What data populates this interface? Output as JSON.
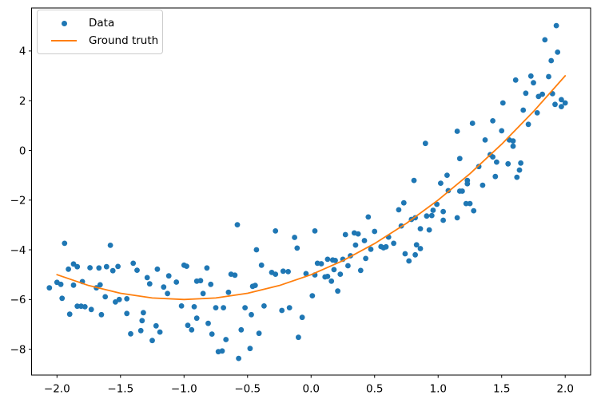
{
  "figure": {
    "background_color": "#ffffff",
    "axes_edge_color": "#000000"
  },
  "legend": {
    "items": [
      {
        "label": "Data",
        "marker": "dot",
        "color": "#1f77b4"
      },
      {
        "label": "Ground truth",
        "marker": "line",
        "color": "#ff7f0e"
      }
    ]
  },
  "chart_data": {
    "type": "scatter",
    "title": "",
    "xlabel": "",
    "ylabel": "",
    "grid": false,
    "legend_position": "upper left",
    "xlim": [
      -2.2,
      2.2
    ],
    "ylim": [
      -9.04,
      5.73
    ],
    "xticks": [
      -2.0,
      -1.5,
      -1.0,
      -0.5,
      0.0,
      0.5,
      1.0,
      1.5,
      2.0
    ],
    "xtick_labels": [
      "−2.0",
      "−1.5",
      "−1.0",
      "−0.5",
      "0.0",
      "0.5",
      "1.0",
      "1.5",
      "2.0"
    ],
    "yticks": [
      -8,
      -6,
      -4,
      -2,
      0,
      2,
      4
    ],
    "ytick_labels": [
      "−8",
      "−6",
      "−4",
      "−2",
      "0",
      "2",
      "4"
    ],
    "series": [
      {
        "name": "Data",
        "type": "scatter",
        "color": "#1f77b4",
        "marker_radius": 3.4,
        "points": [
          [
            -2.06,
            -5.53
          ],
          [
            -2.0,
            -5.31
          ],
          [
            -1.97,
            -5.39
          ],
          [
            -1.96,
            -5.95
          ],
          [
            -1.94,
            -3.74
          ],
          [
            -1.91,
            -4.78
          ],
          [
            -1.9,
            -6.59
          ],
          [
            -1.87,
            -4.57
          ],
          [
            -1.87,
            -5.42
          ],
          [
            -1.84,
            -4.68
          ],
          [
            -1.84,
            -6.27
          ],
          [
            -1.81,
            -6.27
          ],
          [
            -1.8,
            -5.28
          ],
          [
            -1.78,
            -6.29
          ],
          [
            -1.74,
            -4.72
          ],
          [
            -1.73,
            -6.4
          ],
          [
            -1.69,
            -5.53
          ],
          [
            -1.67,
            -4.73
          ],
          [
            -1.66,
            -5.41
          ],
          [
            -1.65,
            -6.61
          ],
          [
            -1.62,
            -5.89
          ],
          [
            -1.61,
            -4.68
          ],
          [
            -1.58,
            -3.82
          ],
          [
            -1.56,
            -4.84
          ],
          [
            -1.54,
            -6.1
          ],
          [
            -1.52,
            -4.67
          ],
          [
            -1.51,
            -6.0
          ],
          [
            -1.45,
            -5.97
          ],
          [
            -1.45,
            -6.56
          ],
          [
            -1.42,
            -7.38
          ],
          [
            -1.4,
            -4.54
          ],
          [
            -1.37,
            -4.82
          ],
          [
            -1.34,
            -7.25
          ],
          [
            -1.33,
            -6.85
          ],
          [
            -1.32,
            -6.53
          ],
          [
            -1.29,
            -5.12
          ],
          [
            -1.27,
            -5.37
          ],
          [
            -1.25,
            -7.65
          ],
          [
            -1.22,
            -7.06
          ],
          [
            -1.21,
            -4.78
          ],
          [
            -1.19,
            -7.31
          ],
          [
            -1.16,
            -5.5
          ],
          [
            -1.13,
            -5.76
          ],
          [
            -1.12,
            -5.05
          ],
          [
            -1.06,
            -5.3
          ],
          [
            -1.02,
            -6.26
          ],
          [
            -1.0,
            -4.62
          ],
          [
            -0.98,
            -4.66
          ],
          [
            -0.97,
            -7.04
          ],
          [
            -0.94,
            -7.22
          ],
          [
            -0.92,
            -6.29
          ],
          [
            -0.9,
            -5.26
          ],
          [
            -0.9,
            -6.75
          ],
          [
            -0.87,
            -5.24
          ],
          [
            -0.85,
            -5.76
          ],
          [
            -0.82,
            -4.73
          ],
          [
            -0.81,
            -6.96
          ],
          [
            -0.79,
            -5.39
          ],
          [
            -0.78,
            -7.39
          ],
          [
            -0.75,
            -6.33
          ],
          [
            -0.73,
            -8.1
          ],
          [
            -0.7,
            -8.07
          ],
          [
            -0.69,
            -6.33
          ],
          [
            -0.67,
            -7.61
          ],
          [
            -0.65,
            -5.71
          ],
          [
            -0.63,
            -4.98
          ],
          [
            -0.6,
            -5.02
          ],
          [
            -0.58,
            -2.99
          ],
          [
            -0.57,
            -8.37
          ],
          [
            -0.55,
            -7.22
          ],
          [
            -0.52,
            -6.33
          ],
          [
            -0.48,
            -7.97
          ],
          [
            -0.47,
            -6.61
          ],
          [
            -0.46,
            -5.47
          ],
          [
            -0.44,
            -5.43
          ],
          [
            -0.43,
            -4.0
          ],
          [
            -0.41,
            -7.36
          ],
          [
            -0.39,
            -4.62
          ],
          [
            -0.37,
            -6.26
          ],
          [
            -0.31,
            -4.91
          ],
          [
            -0.28,
            -3.24
          ],
          [
            -0.28,
            -4.98
          ],
          [
            -0.23,
            -6.44
          ],
          [
            -0.22,
            -4.86
          ],
          [
            -0.18,
            -4.88
          ],
          [
            -0.17,
            -6.33
          ],
          [
            -0.13,
            -3.5
          ],
          [
            -0.11,
            -3.93
          ],
          [
            -0.1,
            -7.52
          ],
          [
            -0.07,
            -6.72
          ],
          [
            -0.04,
            -4.96
          ],
          [
            0.01,
            -5.85
          ],
          [
            0.03,
            -3.24
          ],
          [
            0.03,
            -5.01
          ],
          [
            0.05,
            -4.54
          ],
          [
            0.08,
            -4.56
          ],
          [
            0.11,
            -5.09
          ],
          [
            0.13,
            -4.38
          ],
          [
            0.13,
            -5.07
          ],
          [
            0.16,
            -5.26
          ],
          [
            0.17,
            -4.41
          ],
          [
            0.18,
            -4.8
          ],
          [
            0.19,
            -4.43
          ],
          [
            0.21,
            -5.66
          ],
          [
            0.23,
            -4.98
          ],
          [
            0.25,
            -4.38
          ],
          [
            0.27,
            -3.39
          ],
          [
            0.29,
            -4.64
          ],
          [
            0.31,
            -4.24
          ],
          [
            0.34,
            -3.32
          ],
          [
            0.35,
            -3.81
          ],
          [
            0.37,
            -3.36
          ],
          [
            0.39,
            -4.83
          ],
          [
            0.42,
            -3.63
          ],
          [
            0.43,
            -4.35
          ],
          [
            0.45,
            -2.68
          ],
          [
            0.47,
            -3.98
          ],
          [
            0.5,
            -3.26
          ],
          [
            0.55,
            -3.87
          ],
          [
            0.57,
            -3.92
          ],
          [
            0.59,
            -3.88
          ],
          [
            0.61,
            -3.49
          ],
          [
            0.65,
            -3.74
          ],
          [
            0.69,
            -2.39
          ],
          [
            0.71,
            -3.04
          ],
          [
            0.73,
            -2.11
          ],
          [
            0.74,
            -4.16
          ],
          [
            0.77,
            -4.45
          ],
          [
            0.79,
            -2.78
          ],
          [
            0.81,
            -1.21
          ],
          [
            0.82,
            -2.71
          ],
          [
            0.82,
            -4.2
          ],
          [
            0.83,
            -3.8
          ],
          [
            0.86,
            -3.15
          ],
          [
            0.86,
            -3.95
          ],
          [
            0.9,
            0.28
          ],
          [
            0.91,
            -2.64
          ],
          [
            0.93,
            -3.2
          ],
          [
            0.95,
            -2.62
          ],
          [
            0.96,
            -2.41
          ],
          [
            0.99,
            -2.17
          ],
          [
            1.02,
            -1.32
          ],
          [
            1.04,
            -2.46
          ],
          [
            1.04,
            -2.81
          ],
          [
            1.07,
            -1.0
          ],
          [
            1.08,
            -1.62
          ],
          [
            1.15,
            0.77
          ],
          [
            1.15,
            -2.71
          ],
          [
            1.17,
            -0.33
          ],
          [
            1.17,
            -1.64
          ],
          [
            1.19,
            -1.64
          ],
          [
            1.22,
            -2.14
          ],
          [
            1.23,
            -1.21
          ],
          [
            1.23,
            -1.34
          ],
          [
            1.25,
            -2.14
          ],
          [
            1.27,
            1.09
          ],
          [
            1.28,
            -2.43
          ],
          [
            1.32,
            -0.65
          ],
          [
            1.35,
            -1.4
          ],
          [
            1.37,
            0.42
          ],
          [
            1.41,
            -0.17
          ],
          [
            1.43,
            1.19
          ],
          [
            1.43,
            -0.26
          ],
          [
            1.45,
            -1.05
          ],
          [
            1.46,
            -0.47
          ],
          [
            1.5,
            0.79
          ],
          [
            1.51,
            1.91
          ],
          [
            1.55,
            -0.54
          ],
          [
            1.56,
            0.42
          ],
          [
            1.59,
            0.38
          ],
          [
            1.59,
            0.17
          ],
          [
            1.61,
            2.83
          ],
          [
            1.62,
            -1.08
          ],
          [
            1.64,
            -0.79
          ],
          [
            1.65,
            -0.51
          ],
          [
            1.67,
            1.62
          ],
          [
            1.69,
            2.3
          ],
          [
            1.71,
            1.05
          ],
          [
            1.73,
            2.99
          ],
          [
            1.75,
            2.72
          ],
          [
            1.78,
            1.51
          ],
          [
            1.79,
            2.17
          ],
          [
            1.82,
            2.26
          ],
          [
            1.84,
            4.45
          ],
          [
            1.87,
            2.97
          ],
          [
            1.89,
            3.61
          ],
          [
            1.9,
            2.28
          ],
          [
            1.92,
            1.85
          ],
          [
            1.93,
            5.02
          ],
          [
            1.94,
            3.95
          ],
          [
            1.97,
            2.04
          ],
          [
            1.97,
            1.76
          ],
          [
            2.0,
            1.91
          ]
        ]
      },
      {
        "name": "Ground truth",
        "type": "line",
        "color": "#ff7f0e",
        "line_width": 1.8,
        "formula_points": [
          [
            -2.0,
            -5.0
          ],
          [
            -1.75,
            -5.4375
          ],
          [
            -1.5,
            -5.75
          ],
          [
            -1.25,
            -5.9375
          ],
          [
            -1.0,
            -6.0
          ],
          [
            -0.75,
            -5.9375
          ],
          [
            -0.5,
            -5.75
          ],
          [
            -0.25,
            -5.4375
          ],
          [
            0.0,
            -5.0
          ],
          [
            0.25,
            -4.4375
          ],
          [
            0.5,
            -3.75
          ],
          [
            0.75,
            -2.9375
          ],
          [
            1.0,
            -2.0
          ],
          [
            1.25,
            -0.9375
          ],
          [
            1.5,
            0.25
          ],
          [
            1.75,
            1.5625
          ],
          [
            2.0,
            3.0
          ]
        ]
      }
    ]
  }
}
